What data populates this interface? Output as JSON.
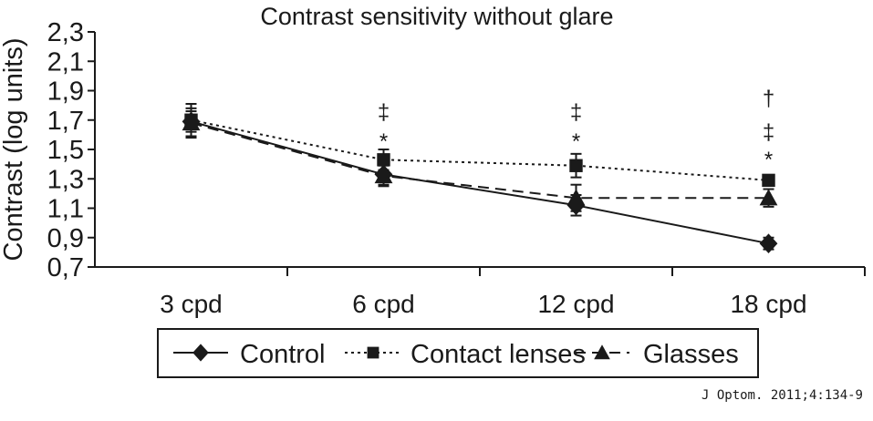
{
  "chart_data": {
    "type": "line",
    "title": "Contrast sensitivity without glare",
    "xlabel": "",
    "ylabel": "Contrast (log units)",
    "categories": [
      "3 cpd",
      "6 cpd",
      "12 cpd",
      "18 cpd"
    ],
    "ylim": [
      0.7,
      2.3
    ],
    "yticks": [
      "0,7",
      "0,9",
      "1,1",
      "1,3",
      "1,5",
      "1,7",
      "1,9",
      "2,1",
      "2,3"
    ],
    "ytick_values": [
      0.7,
      0.9,
      1.1,
      1.3,
      1.5,
      1.7,
      1.9,
      2.1,
      2.3
    ],
    "grid": false,
    "legend_position": "bottom",
    "series": [
      {
        "name": "Control",
        "marker": "diamond",
        "line": "solid",
        "values": [
          1.69,
          1.33,
          1.12,
          0.86
        ],
        "errors": [
          0.07,
          0.07,
          0.07,
          0.04
        ]
      },
      {
        "name": "Contact lenses",
        "marker": "square",
        "line": "dotted",
        "values": [
          1.7,
          1.43,
          1.39,
          1.29
        ],
        "errors": [
          0.11,
          0.07,
          0.08,
          0.03
        ]
      },
      {
        "name": "Glasses",
        "marker": "triangle",
        "line": "dashed",
        "values": [
          1.68,
          1.32,
          1.17,
          1.17
        ],
        "errors": [
          0.1,
          0.07,
          0.09,
          0.06
        ]
      }
    ],
    "annotations": [
      [],
      [
        "*",
        "‡"
      ],
      [
        "*",
        "‡"
      ],
      [
        "*",
        "‡",
        "†"
      ]
    ]
  },
  "citation": "J Optom. 2011;4:134-9",
  "colors": {
    "ink": "#1a1a1a",
    "background": "#ffffff"
  }
}
